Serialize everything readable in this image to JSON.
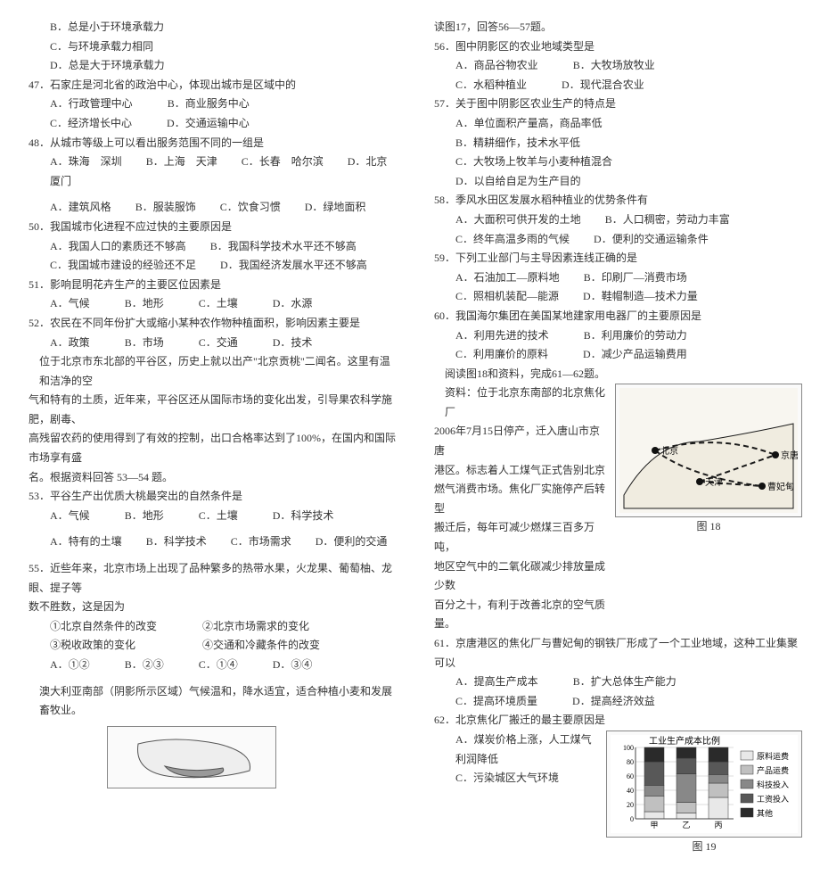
{
  "left": {
    "opt46": {
      "B": "B．总是小于环境承载力",
      "C": "C．与环境承载力相同",
      "D": "D．总是大于环境承载力"
    },
    "q47": "47．石家庄是河北省的政治中心，体现出城市是区域中的",
    "q47o": {
      "A": "A．行政管理中心",
      "B": "B．商业服务中心",
      "C": "C．经济增长中心",
      "D": "D．交通运输中心"
    },
    "q48": "48．从城市等级上可以看出服务范围不同的一组是",
    "q48o": {
      "A": "A．珠海　深圳",
      "B": "B．上海　天津",
      "C": "C．长春　哈尔滨",
      "D": "D．北京　厦门"
    },
    "q49o": {
      "A": "A．建筑风格",
      "B": "B．服装服饰",
      "C": "C．饮食习惯",
      "D": "D．绿地面积"
    },
    "q50": "50．我国城市化进程不应过快的主要原因是",
    "q50o": {
      "A": "A．我国人口的素质还不够高",
      "B": "B．我国科学技术水平还不够高",
      "C": "C．我国城市建设的经验还不足",
      "D": "D．我国经济发展水平还不够高"
    },
    "q51": "51．影响昆明花卉生产的主要区位因素是",
    "q51o": {
      "A": "A．气候",
      "B": "B．地形",
      "C": "C．土壤",
      "D": "D．水源"
    },
    "q52": "52．农民在不同年份扩大或缩小某种农作物种植面积，影响因素主要是",
    "q52o": {
      "A": "A．政策",
      "B": "B．市场",
      "C": "C．交通",
      "D": "D．技术"
    },
    "passage1a": "位于北京市东北部的平谷区，历史上就以出产\"北京贡桃\"二闻名。这里有温和洁净的空",
    "passage1b": "气和特有的土质，近年来，平谷区还从国际市场的变化出发，引导果农科学施肥，剧毒、",
    "passage1c": "高残留农药的使用得到了有效的控制，出口合格率达到了100%，在国内和国际市场享有盛",
    "passage1d": "名。根据资料回答 53—54 题。",
    "q53": "53．平谷生产出优质大桃最突出的自然条件是",
    "q53o": {
      "A": "A．气候",
      "B": "B．地形",
      "C": "C．土壤",
      "D": "D．科学技术"
    },
    "q54o": {
      "A": "A．特有的土壤",
      "B": "B．科学技术",
      "C": "C．市场需求",
      "D": "D．便利的交通"
    },
    "q55a": "55．近些年来，北京市场上出现了品种繁多的热带水果，火龙果、葡萄柚、龙眼、提子等",
    "q55b": "数不胜数，这是因为",
    "q55items": {
      "i1": "①北京自然条件的改变",
      "i2": "②北京市场需求的变化",
      "i3": "③税收政策的变化",
      "i4": "④交通和冷藏条件的改变"
    },
    "q55o": {
      "A": "A．①②",
      "B": "B．②③",
      "C": "C．①④",
      "D": "D．③④"
    },
    "passage2": "澳大利亚南部（阴影所示区域）气候温和，降水适宜，适合种植小麦和发展畜牧业。"
  },
  "right": {
    "lead56": "读图17，回答56—57题。",
    "q56": "56．图中阴影区的农业地域类型是",
    "q56o": {
      "A": "A．商品谷物农业",
      "B": "B．大牧场放牧业",
      "C": "C．水稻种植业",
      "D": "D．现代混合农业"
    },
    "q57": "57．关于图中阴影区农业生产的特点是",
    "q57o": {
      "A": "A．单位面积产量高，商品率低",
      "B": "B．精耕细作，技术水平低",
      "C": "C．大牧场上牧羊与小麦种植混合",
      "D": "D．以自给自足为生产目的"
    },
    "q58": "58．季风水田区发展水稻种植业的优势条件有",
    "q58o": {
      "A": "A．大面积可供开发的土地",
      "B": "B．人口稠密，劳动力丰富",
      "C": "C．终年高温多雨的气候",
      "D": "D．便利的交通运输条件"
    },
    "q59": "59．下列工业部门与主导因素连线正确的是",
    "q59o": {
      "A": "A．石油加工—原料地",
      "B": "B．印刷厂—消费市场",
      "C": "C．照相机装配—能源",
      "D": "D．鞋帽制造—技术力量"
    },
    "q60": "60．我国海尔集团在美国某地建家用电器厂的主要原因是",
    "q60o": {
      "A": "A．利用先进的技术",
      "B": "B．利用廉价的劳动力",
      "C": "C．利用廉价的原料",
      "D": "D．减少产品运输费用"
    },
    "lead61": "阅读图18和资料，完成61—62题。",
    "pass61a": "资料：位于北京东南部的北京焦化厂",
    "pass61b": "2006年7月15日停产，迁入唐山市京唐",
    "pass61c": "港区。标志着人工煤气正式告别北京",
    "pass61d": "燃气消费市场。焦化厂实施停产后转型",
    "pass61e": "搬迁后，每年可减少燃煤三百多万吨，",
    "pass61f": "地区空气中的二氧化碳减少排放量成少数",
    "pass61g": "百分之十，有利于改善北京的空气质量。",
    "q61": "61．京唐港区的焦化厂与曹妃甸的钢铁厂形成了一个工业地域，这种工业集聚可以",
    "q61o": {
      "A": "A．提高生产成本",
      "B": "B．扩大总体生产能力",
      "C": "C．提高环境质量",
      "D": "D．提高经济效益"
    },
    "fig18cap": "图 18",
    "q62": "62．北京焦化厂搬迁的最主要原因是",
    "q62o": {
      "A": "A．煤炭价格上涨，人工煤气利润降低",
      "C": "C．污染城区大气环境"
    },
    "fig19cap": "图 19"
  },
  "map18": {
    "labels": [
      "北京",
      "天津",
      "曹妃甸",
      "京唐港"
    ],
    "positions": [
      [
        40,
        70
      ],
      [
        90,
        105
      ],
      [
        160,
        110
      ],
      [
        175,
        75
      ]
    ],
    "bg": "#f8f6f0",
    "line": "#1a1a1a"
  },
  "chart19": {
    "title": "工业生产成本比例",
    "yticks": [
      0,
      20,
      40,
      60,
      80,
      100
    ],
    "cats": [
      "甲",
      "乙",
      "丙"
    ],
    "stacks": [
      [
        10,
        22,
        15,
        33,
        20
      ],
      [
        8,
        15,
        40,
        22,
        15
      ],
      [
        30,
        20,
        12,
        18,
        20
      ]
    ],
    "colors": [
      "#e8e8e8",
      "#c0c0c0",
      "#888888",
      "#585858",
      "#2a2a2a"
    ],
    "legend": [
      "原料运费",
      "产品运费",
      "科技投入",
      "工资投入",
      "其他"
    ],
    "bg": "#ffffff",
    "axis": "#444"
  }
}
